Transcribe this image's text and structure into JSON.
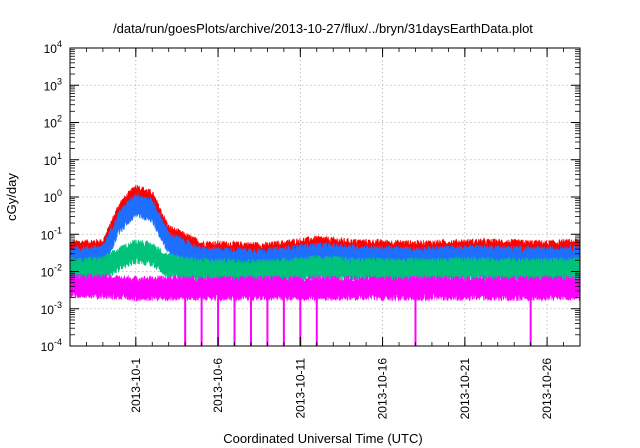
{
  "chart_data": {
    "type": "line",
    "title": "/data/run/goesPlots/archive/2013-10-27/flux/../bryn/31daysEarthData.plot",
    "xlabel": "Coordinated Universal Time (UTC)",
    "ylabel": "cGy/day",
    "x_start": "2013-09-27",
    "x_end": "2013-10-28",
    "x_ticks": [
      "2013-10-1",
      "2013-10-6",
      "2013-10-11",
      "2013-10-16",
      "2013-10-21",
      "2013-10-26"
    ],
    "y_scale": "log",
    "ylim": [
      0.0001,
      10000
    ],
    "y_ticks": [
      {
        "base": "10",
        "exp": "-4",
        "value": 0.0001
      },
      {
        "base": "10",
        "exp": "-3",
        "value": 0.001
      },
      {
        "base": "10",
        "exp": "-2",
        "value": 0.01
      },
      {
        "base": "10",
        "exp": "-1",
        "value": 0.1
      },
      {
        "base": "10",
        "exp": "0",
        "value": 1
      },
      {
        "base": "10",
        "exp": "1",
        "value": 10
      },
      {
        "base": "10",
        "exp": "2",
        "value": 100
      },
      {
        "base": "10",
        "exp": "3",
        "value": 1000
      },
      {
        "base": "10",
        "exp": "4",
        "value": 10000
      }
    ],
    "grid": true,
    "series": [
      {
        "color": "#ff0000",
        "x": [
          "2013-09-27",
          "2013-09-29",
          "2013-09-30",
          "2013-10-01",
          "2013-10-02",
          "2013-10-03",
          "2013-10-05",
          "2013-10-09",
          "2013-10-12",
          "2013-10-14",
          "2013-10-18",
          "2013-10-22",
          "2013-10-26",
          "2013-10-28"
        ],
        "values": [
          0.045,
          0.05,
          0.5,
          1.5,
          1.0,
          0.12,
          0.045,
          0.04,
          0.06,
          0.05,
          0.045,
          0.05,
          0.045,
          0.05
        ]
      },
      {
        "color": "#1e6fff",
        "x": [
          "2013-09-27",
          "2013-09-29",
          "2013-09-30",
          "2013-10-01",
          "2013-10-02",
          "2013-10-03",
          "2013-10-05",
          "2013-10-09",
          "2013-10-12",
          "2013-10-14",
          "2013-10-18",
          "2013-10-22",
          "2013-10-26",
          "2013-10-28"
        ],
        "values": [
          0.03,
          0.035,
          0.3,
          0.9,
          0.6,
          0.08,
          0.03,
          0.028,
          0.04,
          0.035,
          0.03,
          0.035,
          0.03,
          0.035
        ]
      },
      {
        "color": "#00c27a",
        "x": [
          "2013-09-27",
          "2013-09-29",
          "2013-09-30",
          "2013-10-01",
          "2013-10-02",
          "2013-10-03",
          "2013-10-05",
          "2013-10-09",
          "2013-10-12",
          "2013-10-14",
          "2013-10-18",
          "2013-10-22",
          "2013-10-26",
          "2013-10-28"
        ],
        "values": [
          0.015,
          0.017,
          0.03,
          0.05,
          0.04,
          0.02,
          0.015,
          0.014,
          0.018,
          0.016,
          0.015,
          0.016,
          0.015,
          0.016
        ]
      },
      {
        "color": "#ff00ff",
        "x": [
          "2013-09-27",
          "2013-10-01",
          "2013-10-05",
          "2013-10-10",
          "2013-10-15",
          "2013-10-20",
          "2013-10-25",
          "2013-10-28"
        ],
        "values": [
          0.006,
          0.005,
          0.005,
          0.005,
          0.005,
          0.005,
          0.005,
          0.005
        ],
        "dropouts": [
          "2013-10-04",
          "2013-10-05",
          "2013-10-06",
          "2013-10-07",
          "2013-10-08",
          "2013-10-09",
          "2013-10-10",
          "2013-10-11",
          "2013-10-12",
          "2013-10-18",
          "2013-10-25"
        ]
      }
    ]
  }
}
